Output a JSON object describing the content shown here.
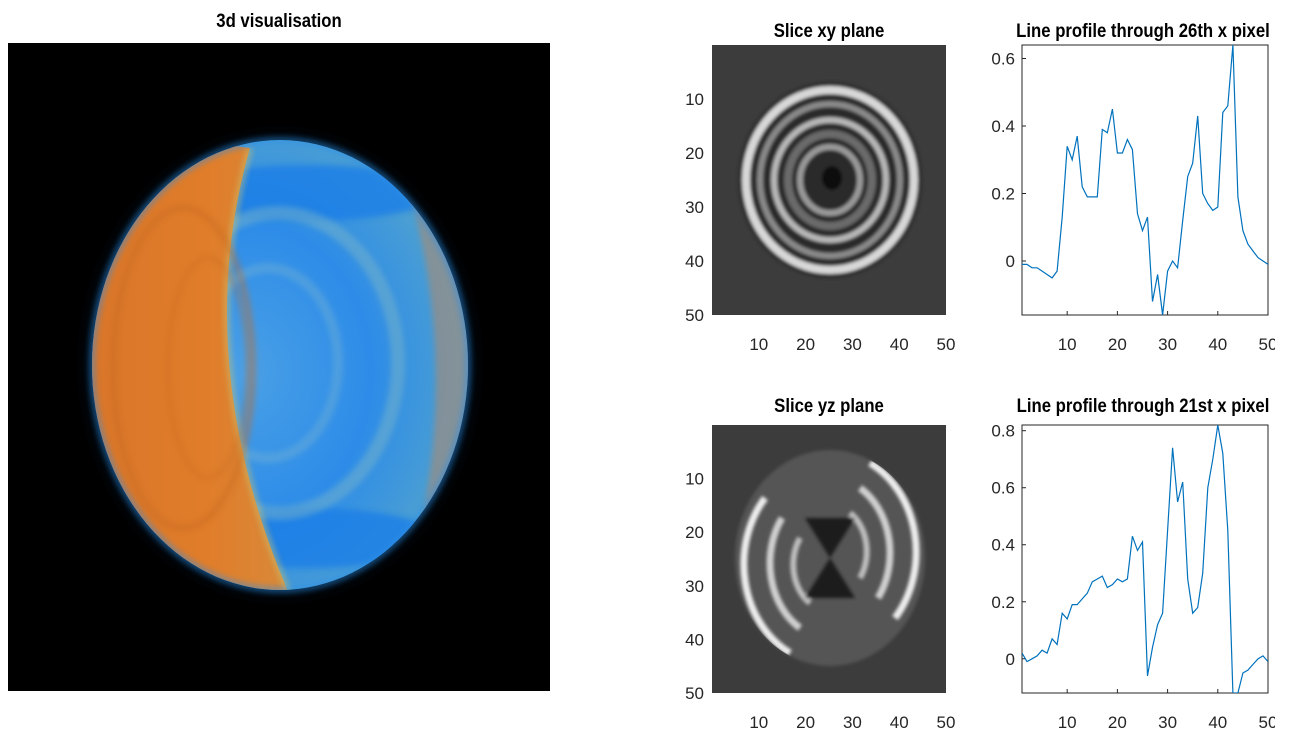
{
  "chart_data": [
    {
      "type": "image",
      "title": "3d visualisation",
      "colors": {
        "background": "#000000",
        "warm": "#e07a26",
        "cool": "#1a7ee0"
      }
    },
    {
      "type": "heatmap",
      "title": "Slice xy plane",
      "colormap": "gray",
      "xlim": [
        0,
        50
      ],
      "ylim": [
        50,
        0
      ],
      "x_ticks": [
        "10",
        "20",
        "30",
        "40",
        "50"
      ],
      "y_ticks": [
        "10",
        "20",
        "30",
        "40",
        "50"
      ]
    },
    {
      "type": "line",
      "title": "Line profile through 26th x pixel",
      "xlim": [
        1,
        50
      ],
      "ylim": [
        -0.16,
        0.64
      ],
      "x_ticks": [
        "10",
        "20",
        "30",
        "40",
        "50"
      ],
      "y_ticks": [
        "0",
        "0.2",
        "0.4",
        "0.6"
      ],
      "x": [
        1,
        2,
        3,
        4,
        5,
        6,
        7,
        8,
        9,
        10,
        11,
        12,
        13,
        14,
        15,
        16,
        17,
        18,
        19,
        20,
        21,
        22,
        23,
        24,
        25,
        26,
        27,
        28,
        29,
        30,
        31,
        32,
        33,
        34,
        35,
        36,
        37,
        38,
        39,
        40,
        41,
        42,
        43,
        44,
        45,
        46,
        47,
        48,
        49,
        50
      ],
      "values": [
        -0.01,
        -0.01,
        -0.02,
        -0.02,
        -0.03,
        -0.04,
        -0.05,
        -0.03,
        0.13,
        0.34,
        0.3,
        0.37,
        0.22,
        0.19,
        0.19,
        0.19,
        0.39,
        0.38,
        0.45,
        0.32,
        0.32,
        0.36,
        0.33,
        0.14,
        0.09,
        0.13,
        -0.12,
        -0.04,
        -0.16,
        -0.03,
        0.0,
        -0.02,
        0.12,
        0.25,
        0.29,
        0.43,
        0.2,
        0.17,
        0.15,
        0.16,
        0.44,
        0.46,
        0.64,
        0.19,
        0.09,
        0.05,
        0.03,
        0.01,
        0.0,
        -0.01
      ],
      "color": "#0072bd"
    },
    {
      "type": "heatmap",
      "title": "Slice yz plane",
      "colormap": "gray",
      "xlim": [
        0,
        50
      ],
      "ylim": [
        50,
        0
      ],
      "x_ticks": [
        "10",
        "20",
        "30",
        "40",
        "50"
      ],
      "y_ticks": [
        "10",
        "20",
        "30",
        "40",
        "50"
      ]
    },
    {
      "type": "line",
      "title": "Line profile through 21st x pixel",
      "xlim": [
        1,
        50
      ],
      "ylim": [
        -0.12,
        0.82
      ],
      "x_ticks": [
        "10",
        "20",
        "30",
        "40",
        "50"
      ],
      "y_ticks": [
        "0",
        "0.2",
        "0.4",
        "0.6",
        "0.8"
      ],
      "x": [
        1,
        2,
        3,
        4,
        5,
        6,
        7,
        8,
        9,
        10,
        11,
        12,
        13,
        14,
        15,
        16,
        17,
        18,
        19,
        20,
        21,
        22,
        23,
        24,
        25,
        26,
        27,
        28,
        29,
        30,
        31,
        32,
        33,
        34,
        35,
        36,
        37,
        38,
        39,
        40,
        41,
        42,
        43,
        44,
        45,
        46,
        47,
        48,
        49,
        50
      ],
      "values": [
        0.02,
        -0.01,
        0.0,
        0.01,
        0.03,
        0.02,
        0.07,
        0.05,
        0.16,
        0.14,
        0.19,
        0.19,
        0.21,
        0.23,
        0.27,
        0.28,
        0.29,
        0.25,
        0.26,
        0.28,
        0.27,
        0.28,
        0.43,
        0.38,
        0.41,
        -0.06,
        0.04,
        0.12,
        0.16,
        0.45,
        0.74,
        0.55,
        0.62,
        0.28,
        0.16,
        0.18,
        0.3,
        0.6,
        0.7,
        0.82,
        0.72,
        0.45,
        -0.12,
        -0.12,
        -0.05,
        -0.04,
        -0.02,
        0.0,
        0.01,
        -0.01
      ],
      "color": "#0072bd"
    }
  ]
}
